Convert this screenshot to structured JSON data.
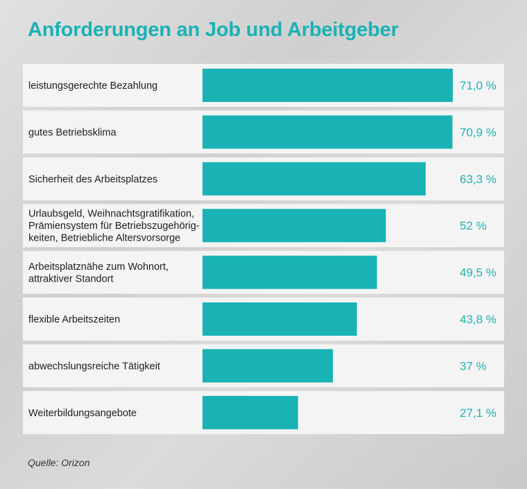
{
  "chart_data": {
    "type": "bar",
    "orientation": "horizontal",
    "title": "Anforderungen an Job und Arbeitgeber",
    "categories": [
      [
        "leistungsgerechte Bezahlung"
      ],
      [
        "gutes Betriebsklima"
      ],
      [
        "Sicherheit des Arbeitsplatzes"
      ],
      [
        "Urlaubsgeld, Weihnachtsgratifikation,",
        "Prämiensystem für Betriebszugehörig-",
        "keiten, Betriebliche Altersvorsorge"
      ],
      [
        "Arbeitsplatznähe zum Wohnort,",
        "attraktiver Standort"
      ],
      [
        "flexible Arbeitszeiten"
      ],
      [
        "abwechslungsreiche Tätigkeit"
      ],
      [
        "Weiterbildungsangebote"
      ]
    ],
    "values": [
      71.0,
      70.9,
      63.3,
      52,
      49.5,
      43.8,
      37,
      27.1
    ],
    "value_labels": [
      "71,0 %",
      "70,9 %",
      "63,3 %",
      "52 %",
      "49,5 %",
      "43,8 %",
      "37 %",
      "27,1 %"
    ],
    "unit": "%",
    "xlim": [
      0,
      71.0
    ],
    "bar_color": "#19b3b5",
    "label_color": "#1ab2b5"
  },
  "source": "Quelle: Orizon"
}
